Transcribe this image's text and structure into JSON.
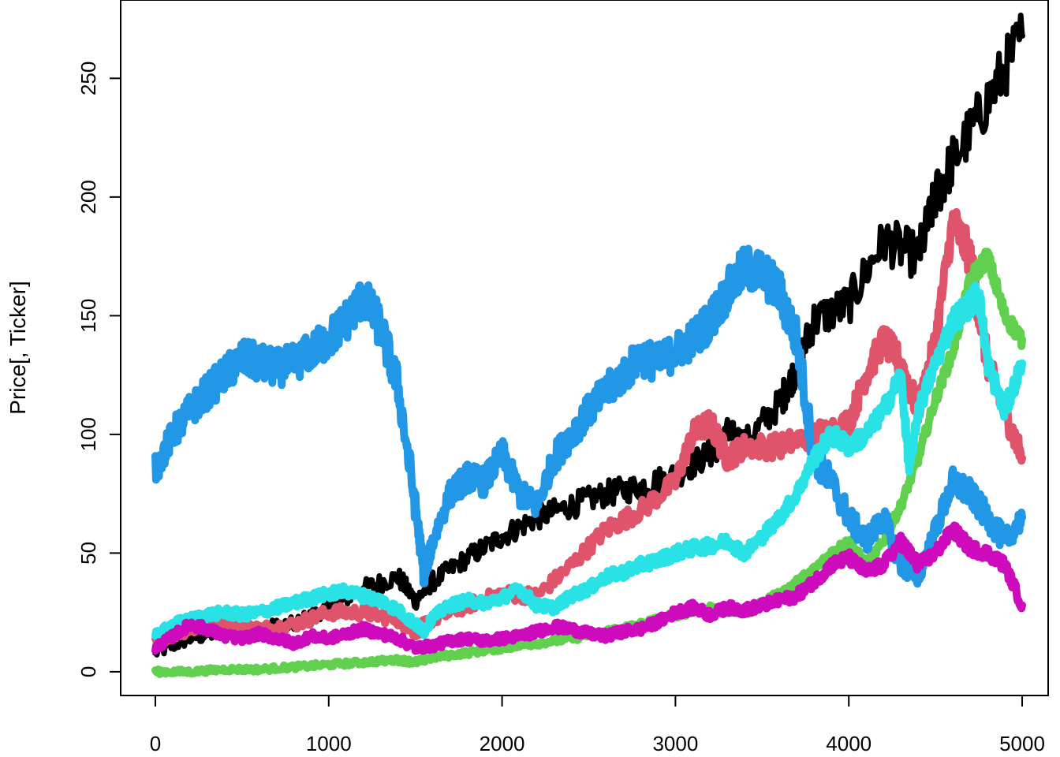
{
  "chart_data": {
    "type": "line",
    "title": "",
    "xlabel": "",
    "ylabel": "Price[, Ticker]",
    "xlim": [
      -200,
      5150
    ],
    "ylim": [
      -10,
      283
    ],
    "x_ticks": [
      0,
      1000,
      2000,
      3000,
      4000,
      5000
    ],
    "x_tick_labels": [
      "0",
      "1000",
      "2000",
      "3000",
      "4000",
      "5000"
    ],
    "y_ticks": [
      0,
      50,
      100,
      150,
      200,
      250
    ],
    "y_tick_labels": [
      "0",
      "50",
      "100",
      "150",
      "200",
      "250"
    ],
    "grid": false,
    "legend": "none",
    "series": [
      {
        "color": "#000000",
        "x": [
          0,
          200,
          400,
          600,
          800,
          1000,
          1200,
          1400,
          1500,
          1600,
          1800,
          2000,
          2200,
          2400,
          2600,
          2800,
          3000,
          3200,
          3300,
          3400,
          3600,
          3700,
          3800,
          4000,
          4200,
          4400,
          4500,
          4600,
          4800,
          5000
        ],
        "values": [
          8,
          14,
          17,
          18,
          20,
          27,
          35,
          40,
          30,
          38,
          48,
          57,
          65,
          70,
          75,
          78,
          83,
          92,
          100,
          96,
          113,
          128,
          148,
          155,
          182,
          175,
          200,
          215,
          240,
          268
        ]
      },
      {
        "color": "#DF536B",
        "x": [
          0,
          200,
          400,
          600,
          800,
          1000,
          1200,
          1400,
          1500,
          1600,
          1800,
          2000,
          2200,
          2400,
          2600,
          2800,
          3000,
          3100,
          3200,
          3300,
          3400,
          3600,
          3800,
          4000,
          4100,
          4200,
          4300,
          4400,
          4500,
          4600,
          4700,
          4800,
          4900,
          5000
        ],
        "values": [
          13,
          18,
          20,
          18,
          20,
          25,
          25,
          22,
          17,
          22,
          28,
          33,
          32,
          45,
          60,
          68,
          80,
          100,
          105,
          90,
          95,
          95,
          100,
          105,
          125,
          140,
          130,
          110,
          140,
          190,
          175,
          130,
          110,
          90
        ]
      },
      {
        "color": "#61D04F",
        "x": [
          0,
          200,
          400,
          600,
          800,
          1000,
          1200,
          1400,
          1500,
          1600,
          1800,
          2000,
          2200,
          2400,
          2600,
          2800,
          3000,
          3200,
          3400,
          3600,
          3800,
          3900,
          4000,
          4100,
          4200,
          4300,
          4400,
          4500,
          4600,
          4700,
          4800,
          4900,
          5000
        ],
        "values": [
          0,
          0,
          1,
          1,
          2,
          3,
          4,
          5,
          4,
          6,
          8,
          10,
          12,
          14,
          17,
          20,
          24,
          27,
          25,
          33,
          43,
          50,
          55,
          45,
          55,
          70,
          90,
          115,
          135,
          165,
          175,
          150,
          140
        ]
      },
      {
        "color": "#2297E6",
        "x": [
          0,
          100,
          200,
          300,
          400,
          500,
          600,
          700,
          800,
          900,
          1000,
          1100,
          1200,
          1300,
          1400,
          1500,
          1550,
          1600,
          1700,
          1800,
          1900,
          2000,
          2100,
          2200,
          2300,
          2400,
          2500,
          2600,
          2700,
          2800,
          2900,
          3000,
          3100,
          3200,
          3300,
          3400,
          3500,
          3600,
          3700,
          3800,
          3900,
          4000,
          4100,
          4200,
          4300,
          4400,
          4500,
          4600,
          4700,
          4800,
          4900,
          5000
        ],
        "values": [
          85,
          100,
          110,
          118,
          125,
          132,
          130,
          128,
          130,
          135,
          140,
          148,
          158,
          145,
          120,
          70,
          40,
          55,
          75,
          82,
          80,
          92,
          75,
          70,
          90,
          100,
          110,
          118,
          125,
          133,
          130,
          135,
          140,
          148,
          160,
          170,
          168,
          160,
          140,
          90,
          80,
          65,
          55,
          65,
          45,
          40,
          60,
          80,
          75,
          65,
          55,
          65
        ]
      },
      {
        "color": "#28E2E5",
        "x": [
          0,
          100,
          200,
          300,
          400,
          500,
          600,
          700,
          800,
          900,
          1000,
          1100,
          1200,
          1300,
          1400,
          1500,
          1550,
          1600,
          1700,
          1800,
          1900,
          2000,
          2100,
          2200,
          2300,
          2400,
          2500,
          2600,
          2700,
          2800,
          2900,
          3000,
          3100,
          3200,
          3300,
          3400,
          3500,
          3600,
          3700,
          3800,
          3900,
          4000,
          4100,
          4200,
          4300,
          4350,
          4400,
          4500,
          4600,
          4700,
          4750,
          4800,
          4900,
          5000
        ],
        "values": [
          15,
          20,
          22,
          24,
          25,
          24,
          25,
          27,
          29,
          31,
          33,
          34,
          32,
          30,
          26,
          20,
          17,
          23,
          28,
          30,
          29,
          31,
          35,
          28,
          27,
          32,
          35,
          40,
          42,
          45,
          47,
          50,
          52,
          53,
          55,
          50,
          57,
          65,
          75,
          90,
          100,
          95,
          100,
          110,
          125,
          85,
          110,
          130,
          148,
          155,
          160,
          130,
          110,
          130
        ]
      },
      {
        "color": "#CD0BBC",
        "x": [
          0,
          100,
          200,
          300,
          400,
          500,
          600,
          700,
          800,
          900,
          1000,
          1100,
          1200,
          1300,
          1400,
          1500,
          1600,
          1700,
          1800,
          1900,
          2000,
          2100,
          2200,
          2300,
          2400,
          2500,
          2600,
          2700,
          2800,
          2900,
          3000,
          3100,
          3200,
          3300,
          3400,
          3500,
          3600,
          3700,
          3800,
          3900,
          4000,
          4100,
          4200,
          4300,
          4350,
          4400,
          4500,
          4600,
          4700,
          4800,
          4900,
          5000
        ],
        "values": [
          10,
          15,
          20,
          18,
          15,
          14,
          16,
          14,
          12,
          15,
          14,
          16,
          18,
          16,
          14,
          10,
          11,
          13,
          14,
          13,
          14,
          15,
          17,
          19,
          18,
          16,
          15,
          17,
          18,
          21,
          25,
          27,
          24,
          27,
          26,
          28,
          30,
          32,
          38,
          45,
          48,
          42,
          45,
          55,
          50,
          45,
          50,
          60,
          52,
          50,
          45,
          28
        ]
      }
    ]
  }
}
